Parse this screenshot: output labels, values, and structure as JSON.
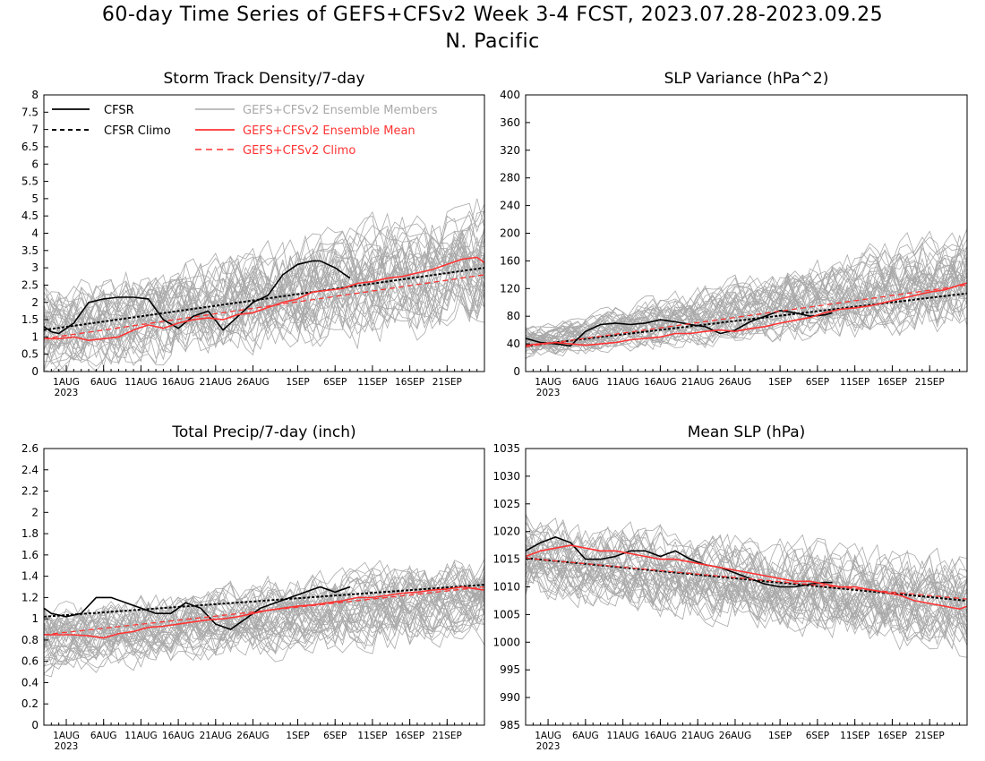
{
  "figure": {
    "title": "60-day Time Series of GEFS+CFSv2 Week 3-4 FCST, 2023.07.28-2023.09.25",
    "region": "N. Pacific"
  },
  "legend": {
    "cfsr": "CFSR",
    "cfsr_climo": "CFSR Climo",
    "members": "GEFS+CFSv2 Ensemble Members",
    "ens_mean": "GEFS+CFSv2 Ensemble Mean",
    "ens_climo": "GEFS+CFSv2 Climo",
    "placement": "top-left"
  },
  "colors": {
    "cfsr": "#000000",
    "cfsr_climo": "#000000",
    "members": "#a9a9a9",
    "ens_mean": "#ff3333",
    "ens_climo": "#ff3333"
  },
  "x_ticks": [
    "1AUG",
    "6AUG",
    "11AUG",
    "16AUG",
    "21AUG",
    "26AUG",
    "1SEP",
    "6SEP",
    "11SEP",
    "16SEP",
    "21SEP"
  ],
  "x_tick_days": [
    4,
    9,
    14,
    19,
    24,
    29,
    35,
    40,
    45,
    50,
    55
  ],
  "x_year": "2023",
  "chart_data": [
    {
      "type": "line",
      "title": "Storm Track Density/7-day",
      "x": "days 1-60 (2023-07-28 to 2023-09-25)",
      "ylim": [
        0,
        8
      ],
      "yticks": [
        "0",
        "0.5",
        "1",
        "1.5",
        "2",
        "2.5",
        "3",
        "3.5",
        "4",
        "4.5",
        "5",
        "5.5",
        "6",
        "6.5",
        "7",
        "7.5",
        "8"
      ],
      "ensemble_spread": {
        "low_start": 0.2,
        "low_end": 1.6,
        "high_start": 2.2,
        "high_end": 4.7,
        "members": 40
      },
      "series": [
        {
          "name": "CFSR",
          "x": [
            1,
            2,
            3,
            5,
            7,
            9,
            11,
            13,
            15,
            17,
            19,
            21,
            23,
            25,
            27,
            29,
            31,
            33,
            35,
            37,
            38,
            39,
            40,
            42
          ],
          "values": [
            1.3,
            1.15,
            1.1,
            1.4,
            2.0,
            2.1,
            2.15,
            2.15,
            2.1,
            1.5,
            1.25,
            1.6,
            1.75,
            1.2,
            1.6,
            2.0,
            2.2,
            2.8,
            3.1,
            3.2,
            3.2,
            3.1,
            3.0,
            2.7
          ]
        },
        {
          "name": "CFSR Climo",
          "x": [
            1,
            60
          ],
          "values": [
            1.2,
            3.0
          ]
        },
        {
          "name": "GEFS+CFSv2 Ensemble Mean",
          "x": [
            1,
            3,
            5,
            7,
            9,
            11,
            13,
            15,
            17,
            19,
            21,
            23,
            25,
            27,
            29,
            31,
            33,
            35,
            37,
            39,
            41,
            43,
            45,
            47,
            49,
            51,
            53,
            55,
            57,
            59,
            60
          ],
          "values": [
            0.95,
            0.95,
            1.0,
            0.9,
            0.95,
            1.0,
            1.2,
            1.35,
            1.25,
            1.4,
            1.5,
            1.55,
            1.5,
            1.65,
            1.7,
            1.85,
            2.0,
            2.1,
            2.3,
            2.35,
            2.4,
            2.55,
            2.6,
            2.7,
            2.75,
            2.85,
            2.95,
            3.1,
            3.25,
            3.3,
            3.15
          ]
        },
        {
          "name": "GEFS+CFSv2 Climo",
          "x": [
            1,
            60
          ],
          "values": [
            0.95,
            2.8
          ]
        }
      ]
    },
    {
      "type": "line",
      "title": "SLP Variance (hPa^2)",
      "x": "days 1-60 (2023-07-28 to 2023-09-25)",
      "ylim": [
        0,
        400
      ],
      "yticks": [
        "0",
        "40",
        "80",
        "120",
        "160",
        "200",
        "240",
        "280",
        "320",
        "360",
        "400"
      ],
      "ensemble_spread": {
        "low_start": 25,
        "low_end": 75,
        "high_start": 60,
        "high_end": 200,
        "members": 40
      },
      "series": [
        {
          "name": "CFSR",
          "x": [
            1,
            3,
            5,
            7,
            9,
            11,
            13,
            15,
            17,
            19,
            21,
            23,
            25,
            27,
            29,
            31,
            33,
            35,
            37,
            39,
            41,
            42
          ],
          "values": [
            48,
            42,
            40,
            37,
            58,
            68,
            70,
            68,
            70,
            75,
            72,
            68,
            65,
            55,
            60,
            72,
            80,
            88,
            85,
            80,
            82,
            85
          ]
        },
        {
          "name": "CFSR Climo",
          "x": [
            1,
            60
          ],
          "values": [
            37,
            113
          ]
        },
        {
          "name": "GEFS+CFSv2 Ensemble Mean",
          "x": [
            1,
            3,
            5,
            7,
            9,
            11,
            13,
            15,
            17,
            19,
            21,
            23,
            25,
            27,
            29,
            31,
            33,
            35,
            37,
            39,
            41,
            43,
            45,
            47,
            49,
            51,
            53,
            55,
            57,
            59,
            60
          ],
          "values": [
            38,
            40,
            42,
            40,
            38,
            40,
            42,
            46,
            48,
            50,
            55,
            55,
            58,
            60,
            58,
            62,
            65,
            70,
            74,
            78,
            85,
            90,
            92,
            95,
            100,
            105,
            110,
            115,
            118,
            125,
            128
          ]
        },
        {
          "name": "GEFS+CFSv2 Climo",
          "x": [
            1,
            60
          ],
          "values": [
            36,
            125
          ]
        }
      ]
    },
    {
      "type": "line",
      "title": "Total Precip/7-day (inch)",
      "x": "days 1-60 (2023-07-28 to 2023-09-25)",
      "ylim": [
        0,
        2.6
      ],
      "yticks": [
        "0",
        "0.2",
        "0.4",
        "0.6",
        "0.8",
        "1",
        "1.2",
        "1.4",
        "1.6",
        "1.8",
        "2",
        "2.2",
        "2.4",
        "2.6"
      ],
      "ensemble_spread": {
        "low_start": 0.55,
        "low_end": 0.85,
        "high_start": 1.05,
        "high_end": 1.55,
        "members": 40
      },
      "series": [
        {
          "name": "CFSR",
          "x": [
            1,
            2,
            4,
            6,
            8,
            10,
            12,
            14,
            16,
            18,
            20,
            22,
            24,
            26,
            28,
            30,
            32,
            34,
            36,
            38,
            40,
            42
          ],
          "values": [
            1.1,
            1.05,
            1.02,
            1.05,
            1.2,
            1.2,
            1.15,
            1.1,
            1.05,
            1.05,
            1.15,
            1.1,
            0.95,
            0.9,
            1.0,
            1.1,
            1.15,
            1.2,
            1.25,
            1.3,
            1.25,
            1.3
          ]
        },
        {
          "name": "CFSR Climo",
          "x": [
            1,
            60
          ],
          "values": [
            1.02,
            1.32
          ]
        },
        {
          "name": "GEFS+CFSv2 Ensemble Mean",
          "x": [
            1,
            3,
            5,
            7,
            9,
            11,
            13,
            15,
            17,
            19,
            21,
            23,
            25,
            27,
            29,
            31,
            33,
            35,
            37,
            39,
            41,
            43,
            45,
            47,
            49,
            51,
            53,
            55,
            57,
            59,
            60
          ],
          "values": [
            0.85,
            0.85,
            0.85,
            0.84,
            0.82,
            0.86,
            0.88,
            0.92,
            0.93,
            0.95,
            0.97,
            0.99,
            1.0,
            1.02,
            1.05,
            1.08,
            1.1,
            1.12,
            1.13,
            1.15,
            1.17,
            1.2,
            1.2,
            1.22,
            1.24,
            1.25,
            1.27,
            1.28,
            1.3,
            1.28,
            1.27
          ]
        },
        {
          "name": "GEFS+CFSv2 Climo",
          "x": [
            1,
            60
          ],
          "values": [
            0.85,
            1.3
          ]
        }
      ]
    },
    {
      "type": "line",
      "title": "Mean SLP (hPa)",
      "x": "days 1-60 (2023-07-28 to 2023-09-25)",
      "ylim": [
        985,
        1035
      ],
      "yticks": [
        "985",
        "990",
        "995",
        "1000",
        "1005",
        "1010",
        "1015",
        "1020",
        "1025",
        "1030",
        "1035"
      ],
      "ensemble_spread": {
        "low_start": 1009.0,
        "low_end": 999.0,
        "high_start": 1021.0,
        "high_end": 1014.0,
        "members": 40
      },
      "series": [
        {
          "name": "CFSR",
          "x": [
            1,
            3,
            5,
            7,
            9,
            11,
            13,
            15,
            17,
            19,
            21,
            23,
            25,
            27,
            29,
            31,
            33,
            35,
            37,
            39,
            41,
            42
          ],
          "values": [
            1016.5,
            1018.0,
            1019.0,
            1018.0,
            1015.0,
            1015.0,
            1015.5,
            1016.5,
            1016.5,
            1015.5,
            1016.5,
            1015.0,
            1014.0,
            1013.5,
            1012.5,
            1011.5,
            1010.5,
            1010.0,
            1010.0,
            1010.5,
            1010.8,
            1010.8
          ]
        },
        {
          "name": "CFSR Climo",
          "x": [
            1,
            60
          ],
          "values": [
            1015.2,
            1007.5
          ]
        },
        {
          "name": "GEFS+CFSv2 Ensemble Mean",
          "x": [
            1,
            3,
            5,
            7,
            9,
            11,
            13,
            15,
            17,
            19,
            21,
            23,
            25,
            27,
            29,
            31,
            33,
            35,
            37,
            39,
            41,
            43,
            45,
            47,
            49,
            51,
            53,
            55,
            57,
            59,
            60
          ],
          "values": [
            1015.5,
            1016.5,
            1017.0,
            1017.5,
            1017.0,
            1016.5,
            1016.5,
            1016.0,
            1015.5,
            1015.0,
            1015.0,
            1014.5,
            1014.0,
            1013.5,
            1013.0,
            1012.5,
            1012.0,
            1011.5,
            1011.0,
            1011.0,
            1010.5,
            1010.0,
            1010.0,
            1009.5,
            1009.0,
            1008.5,
            1007.5,
            1007.0,
            1006.5,
            1006.0,
            1006.5
          ]
        },
        {
          "name": "GEFS+CFSv2 Climo",
          "x": [
            1,
            60
          ],
          "values": [
            1015.2,
            1007.8
          ]
        }
      ]
    }
  ]
}
